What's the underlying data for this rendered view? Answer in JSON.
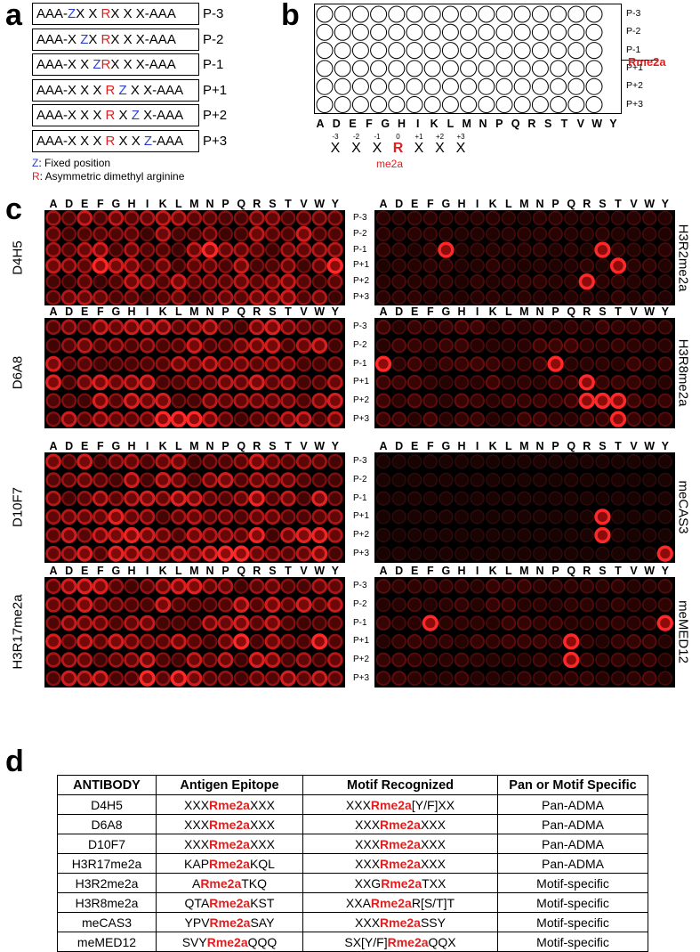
{
  "panel_labels": {
    "a": "a",
    "b": "b",
    "c": "c",
    "d": "d"
  },
  "panel_a": {
    "peptides": [
      {
        "p1": "AAA-",
        "p2": "Z",
        "p3": "X X ",
        "p4": "R",
        "p5": "X X X-AAA",
        "label": "P-3"
      },
      {
        "p1": "AAA-X ",
        "p2": "Z",
        "p3": "X ",
        "p4": "R",
        "p5": "X X X-AAA",
        "label": "P-2"
      },
      {
        "p1": "AAA-X X ",
        "p2": "Z",
        "p3": "",
        "p4": "R",
        "p5": "X X X-AAA",
        "label": "P-1"
      },
      {
        "p1": "AAA-X X X ",
        "p2": "",
        "p3": "",
        "p4": "R",
        "p5": " Z X X-AAA",
        "label": "P+1"
      },
      {
        "p1": "AAA-X X X ",
        "p2": "",
        "p3": "",
        "p4": "R",
        "p5": " X Z X-AAA",
        "label": "P+2"
      },
      {
        "p1": "AAA-X X X ",
        "p2": "",
        "p3": "",
        "p4": "R",
        "p5": " X X Z-AAA",
        "label": "P+3"
      }
    ],
    "legend_z_key": "Z",
    "legend_z_text": ": Fixed position",
    "legend_r_key": "R",
    "legend_r_text": ": Asymmetric dimethyl arginine"
  },
  "panel_b": {
    "rows": [
      "P-3",
      "P-2",
      "P-1",
      "P+1",
      "P+2",
      "P+3"
    ],
    "rme2a_label": "Rme2a",
    "positions": [
      {
        "num": "-3",
        "char": "X"
      },
      {
        "num": "-2",
        "char": "X"
      },
      {
        "num": "-1",
        "char": "X"
      },
      {
        "num": "0",
        "char": "R"
      },
      {
        "num": "+1",
        "char": "X"
      },
      {
        "num": "+2",
        "char": "X"
      },
      {
        "num": "+3",
        "char": "X"
      }
    ],
    "me2a": "me2a"
  },
  "amino_acids": [
    "A",
    "D",
    "E",
    "F",
    "G",
    "H",
    "I",
    "K",
    "L",
    "M",
    "N",
    "P",
    "Q",
    "R",
    "S",
    "T",
    "V",
    "W",
    "Y"
  ],
  "panel_c": {
    "rows": [
      "P-3",
      "P-2",
      "P-1",
      "P+1",
      "P+2",
      "P+3"
    ],
    "blots": [
      {
        "name": "D4H5",
        "side": "left",
        "intensity": 0.55,
        "strong": [
          [
            3,
            3
          ],
          [
            3,
            18
          ],
          [
            2,
            10
          ]
        ]
      },
      {
        "name": "H3R2me2a",
        "side": "right",
        "intensity": 0.12,
        "strong": [
          [
            2,
            4
          ],
          [
            3,
            15
          ],
          [
            2,
            14
          ],
          [
            4,
            13
          ]
        ]
      },
      {
        "name": "D6A8",
        "side": "left",
        "intensity": 0.6,
        "strong": [
          [
            5,
            7
          ],
          [
            5,
            9
          ],
          [
            5,
            8
          ]
        ]
      },
      {
        "name": "H3R8me2a",
        "side": "right",
        "intensity": 0.22,
        "strong": [
          [
            2,
            0
          ],
          [
            4,
            14
          ],
          [
            4,
            15
          ],
          [
            5,
            15
          ],
          [
            4,
            13
          ],
          [
            3,
            13
          ],
          [
            2,
            11
          ]
        ]
      },
      {
        "name": "D10F7",
        "side": "left",
        "intensity": 0.65,
        "strong": [
          [
            5,
            11
          ],
          [
            5,
            12
          ]
        ]
      },
      {
        "name": "meCAS3",
        "side": "right",
        "intensity": 0.03,
        "strong": [
          [
            5,
            18
          ],
          [
            3,
            14
          ],
          [
            4,
            14
          ]
        ]
      },
      {
        "name": "H3R17me2a",
        "side": "left",
        "intensity": 0.6,
        "strong": [
          [
            5,
            8
          ],
          [
            3,
            12
          ],
          [
            5,
            6
          ],
          [
            3,
            17
          ]
        ]
      },
      {
        "name": "meMED12",
        "side": "right",
        "intensity": 0.18,
        "strong": [
          [
            2,
            3
          ],
          [
            3,
            12
          ],
          [
            2,
            18
          ],
          [
            4,
            12
          ]
        ]
      }
    ]
  },
  "panel_d": {
    "headers": [
      "ANTIBODY",
      "Antigen Epitope",
      "Motif Recognized",
      "Pan or Motif Specific"
    ],
    "rows": [
      {
        "antibody": "D4H5",
        "ep_pre": "XXX",
        "ep_mid": "Rme2a",
        "ep_post": "XXX",
        "mo_pre": "XXX",
        "mo_mid": "Rme2a",
        "mo_post": "[Y/F]XX",
        "spec": "Pan-ADMA"
      },
      {
        "antibody": "D6A8",
        "ep_pre": "XXX",
        "ep_mid": "Rme2a",
        "ep_post": "XXX",
        "mo_pre": "XXX",
        "mo_mid": "Rme2a",
        "mo_post": "XXX",
        "spec": "Pan-ADMA"
      },
      {
        "antibody": "D10F7",
        "ep_pre": "XXX",
        "ep_mid": "Rme2a",
        "ep_post": "XXX",
        "mo_pre": "XXX",
        "mo_mid": "Rme2a",
        "mo_post": "XXX",
        "spec": "Pan-ADMA"
      },
      {
        "antibody": "H3R17me2a",
        "ep_pre": "KAP",
        "ep_mid": "Rme2a",
        "ep_post": "KQL",
        "mo_pre": "XXX",
        "mo_mid": "Rme2a",
        "mo_post": "XXX",
        "spec": "Pan-ADMA"
      },
      {
        "antibody": "H3R2me2a",
        "ep_pre": "A",
        "ep_mid": "Rme2a",
        "ep_post": "TKQ",
        "mo_pre": "XXG",
        "mo_mid": "Rme2a",
        "mo_post": "TXX",
        "spec": "Motif-specific"
      },
      {
        "antibody": "H3R8me2a",
        "ep_pre": "QTA",
        "ep_mid": "Rme2a",
        "ep_post": "KST",
        "mo_pre": "XXA",
        "mo_mid": "Rme2a",
        "mo_post": "R[S/T]T",
        "spec": "Motif-specific"
      },
      {
        "antibody": "meCAS3",
        "ep_pre": "YPV",
        "ep_mid": "Rme2a",
        "ep_post": "SAY",
        "mo_pre": "XXX",
        "mo_mid": "Rme2a",
        "mo_post": "SSY",
        "spec": "Motif-specific"
      },
      {
        "antibody": "meMED12",
        "ep_pre": "SVY",
        "ep_mid": "Rme2a",
        "ep_post": "QQQ",
        "mo_pre": "SX[Y/F]",
        "mo_mid": "Rme2a",
        "mo_post": "QQX",
        "spec": "Motif-specific"
      }
    ]
  },
  "colors": {
    "blue": "#2a3fd1",
    "red": "#e02020"
  }
}
